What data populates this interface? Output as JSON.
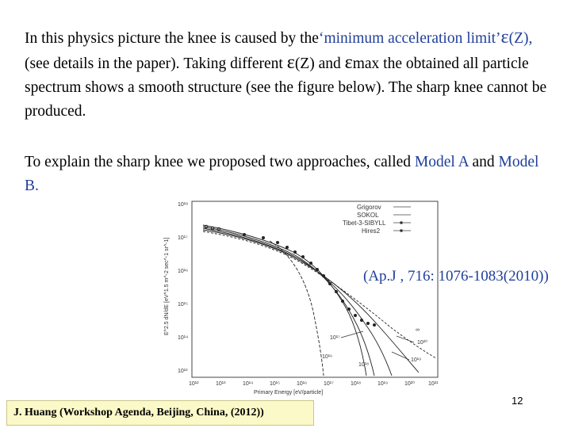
{
  "text": {
    "p1": {
      "a": "In this physics picture the knee is caused by the",
      "b": "‘minimum acceleration limit’",
      "eps1": "ε",
      "c": "(Z), ",
      "d": "(see details in the paper). Taking different ",
      "eps2": "ε",
      "e": "(Z) and ",
      "eps3": "ε",
      "f": "max the obtained all particle spectrum shows a smooth structure (see the figure below). The sharp knee cannot be produced."
    },
    "p2": {
      "a": "To explain the sharp knee we proposed two approaches, called ",
      "model_a": "Model A",
      "and": " and ",
      "model_b": "Model B",
      "dot": "."
    }
  },
  "figure": {
    "y_ticks": [
      "10¹⁸",
      "10¹⁷",
      "10¹⁶",
      "10¹⁵",
      "10¹⁴",
      "10¹³"
    ],
    "x_ticks": [
      "10¹²",
      "10¹³",
      "10¹⁴",
      "10¹⁵",
      "10¹⁶",
      "10¹⁷",
      "10¹⁸",
      "10¹⁹",
      "10²⁰",
      "10²¹"
    ],
    "x_label": "Primary Energy [eV/particle]",
    "y_label": "E^2.5 dN/dE [eV^1.5 m^-2 sec^-1 sr^-1]",
    "legend": [
      "Grigorov",
      "SOKOL",
      "Tibet-3-SIBYLL",
      "Hires2"
    ],
    "curve_labels": [
      "10¹⁷",
      "10¹⁸",
      "10¹⁹",
      "10²⁰",
      "∞",
      "10¹⁶"
    ]
  },
  "annotation": "(Ap.J , 716: 1076-1083(2010))",
  "footer": "J. Huang  (Workshop  Agenda,  Beijing,  China, (2012))",
  "page_number": "12"
}
